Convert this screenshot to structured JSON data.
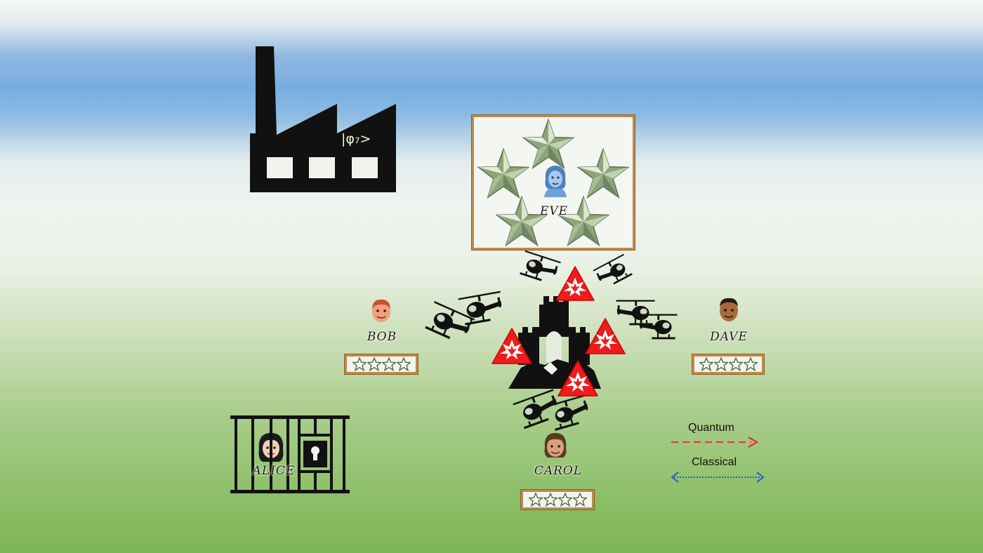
{
  "factory": {
    "ket_label": "|φ₇>"
  },
  "players": {
    "eve": {
      "name": "EVE",
      "stars": 5
    },
    "bob": {
      "name": "BOB",
      "stars": 4
    },
    "dave": {
      "name": "DAVE",
      "stars": 4
    },
    "carol": {
      "name": "CAROL",
      "stars": 4
    },
    "alice": {
      "name": "ALICE"
    }
  },
  "legend": {
    "quantum": {
      "label": "Quantum",
      "color": "#e8362a"
    },
    "classical": {
      "label": "Classical",
      "color": "#2f54d8"
    }
  },
  "colors": {
    "warning_red": "#ee1c1c",
    "silhouette": "#111111",
    "frame_gold": "#c08a4a",
    "star_silver_green": "#9fb68c"
  },
  "icons": [
    "factory-icon",
    "castle-icon",
    "helicopter-icon",
    "warning-explosion-icon",
    "jail-cell-icon",
    "padlock-icon",
    "star-icon",
    "avatar"
  ]
}
